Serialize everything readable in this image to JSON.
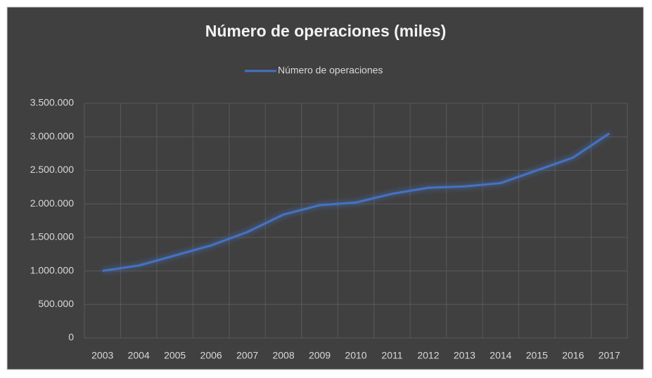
{
  "chart_data": {
    "type": "line",
    "title": "Número de operaciones (miles)",
    "categories": [
      "2003",
      "2004",
      "2005",
      "2006",
      "2007",
      "2008",
      "2009",
      "2010",
      "2011",
      "2012",
      "2013",
      "2014",
      "2015",
      "2016",
      "2017"
    ],
    "series": [
      {
        "name": "Número de operaciones",
        "color": "#4472c4",
        "values": [
          1000000,
          1080000,
          1230000,
          1380000,
          1580000,
          1840000,
          1980000,
          2020000,
          2150000,
          2240000,
          2260000,
          2310000,
          2500000,
          2690000,
          3050000
        ]
      }
    ],
    "ylim": [
      0,
      3500000
    ],
    "yticks": [
      0,
      {
        "value": 500000,
        "label": "500.000"
      },
      {
        "value": 1000000,
        "label": "1.000.000"
      },
      {
        "value": 1500000,
        "label": "1.500.000"
      },
      {
        "value": 2000000,
        "label": "2.000.000"
      },
      {
        "value": 2500000,
        "label": "2.500.000"
      },
      {
        "value": 3000000,
        "label": "3.000.000"
      },
      {
        "value": 3500000,
        "label": "3.500.000"
      }
    ],
    "grid": true,
    "legend": "top"
  }
}
